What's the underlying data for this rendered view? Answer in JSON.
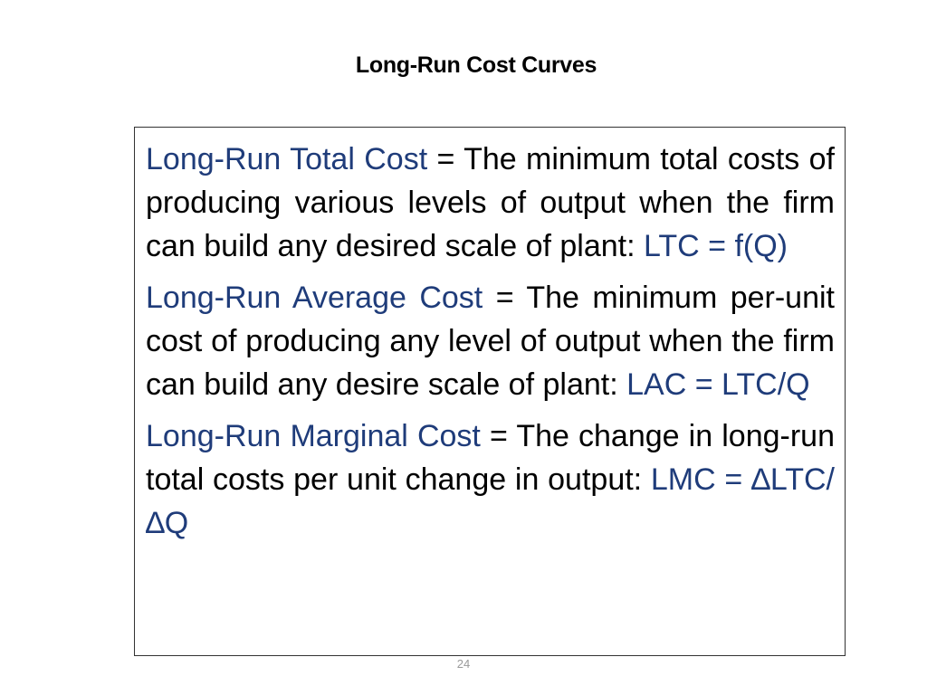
{
  "slide": {
    "title": "Long-Run Cost Curves",
    "page_number": "24"
  },
  "definitions": [
    {
      "term": "Long-Run Total Cost",
      "equals": " = ",
      "text": "The minimum total costs of producing various levels of output when the firm can build any desired scale of plant: ",
      "formula": "LTC = f(Q)"
    },
    {
      "term": "Long-Run Average Cost",
      "equals": " = ",
      "text": "The minimum per-unit cost of producing any level of output when the firm can build any desire scale of plant: ",
      "formula": "LAC = LTC/Q"
    },
    {
      "term": "Long-Run Marginal Cost",
      "equals": " = ",
      "text": "The change in long-run total costs per unit change in output: ",
      "formula": "LMC = ∆LTC/∆Q"
    }
  ],
  "colors": {
    "term": "#1f3c7a",
    "text": "#000000",
    "border": "#333333",
    "page_number": "#9a9a9a"
  }
}
